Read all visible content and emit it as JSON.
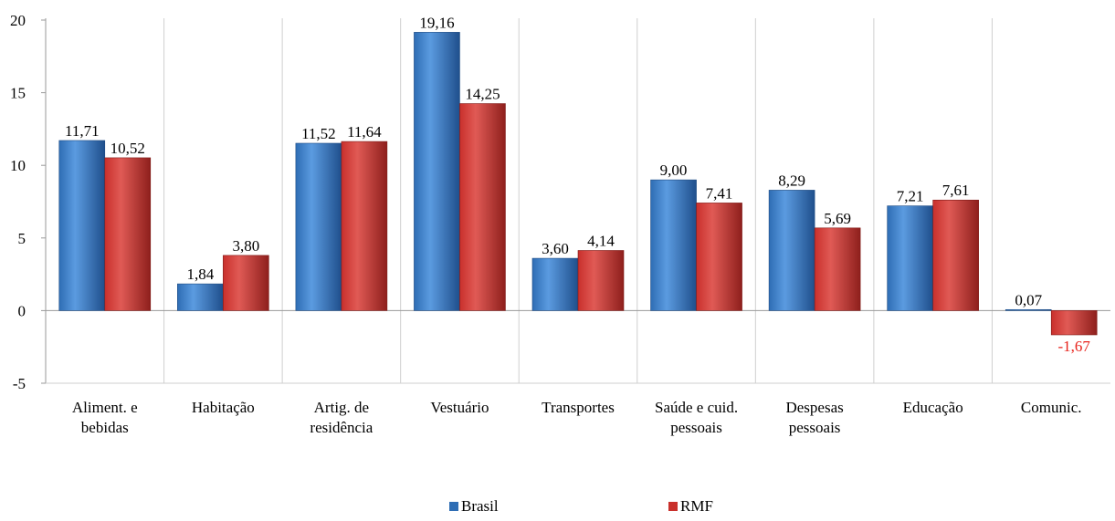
{
  "chart_data": {
    "type": "bar",
    "categories": [
      [
        "Aliment. e",
        "bebidas"
      ],
      [
        "Habitação"
      ],
      [
        "Artig. de",
        "residência"
      ],
      [
        "Vestuário"
      ],
      [
        "Transportes"
      ],
      [
        "Saúde e cuid.",
        "pessoais"
      ],
      [
        "Despesas",
        "pessoais"
      ],
      [
        "Educação"
      ],
      [
        "Comunic."
      ]
    ],
    "series": [
      {
        "name": "Brasil",
        "color": "#2e6db4",
        "values": [
          11.71,
          1.84,
          11.52,
          19.16,
          3.6,
          9.0,
          8.29,
          7.21,
          0.07
        ],
        "labels": [
          "11,71",
          "1,84",
          "11,52",
          "19,16",
          "3,60",
          "9,00",
          "8,29",
          "7,21",
          "0,07"
        ]
      },
      {
        "name": "RMF",
        "color": "#c9302c",
        "values": [
          10.52,
          3.8,
          11.64,
          14.25,
          4.14,
          7.41,
          5.69,
          7.61,
          -1.67
        ],
        "labels": [
          "10,52",
          "3,80",
          "11,64",
          "14,25",
          "4,14",
          "7,41",
          "5,69",
          "7,61",
          "-1,67"
        ]
      }
    ],
    "negative_label_color": "#e8221b",
    "ylim": [
      -5,
      20
    ],
    "yticks": [
      -5,
      0,
      5,
      10,
      15,
      20
    ],
    "ytick_labels": [
      "-5",
      "0",
      "5",
      "10",
      "15",
      "20"
    ],
    "grid": "vertical category separators",
    "legend": "bottom-center",
    "title": "",
    "xlabel": "",
    "ylabel": ""
  }
}
